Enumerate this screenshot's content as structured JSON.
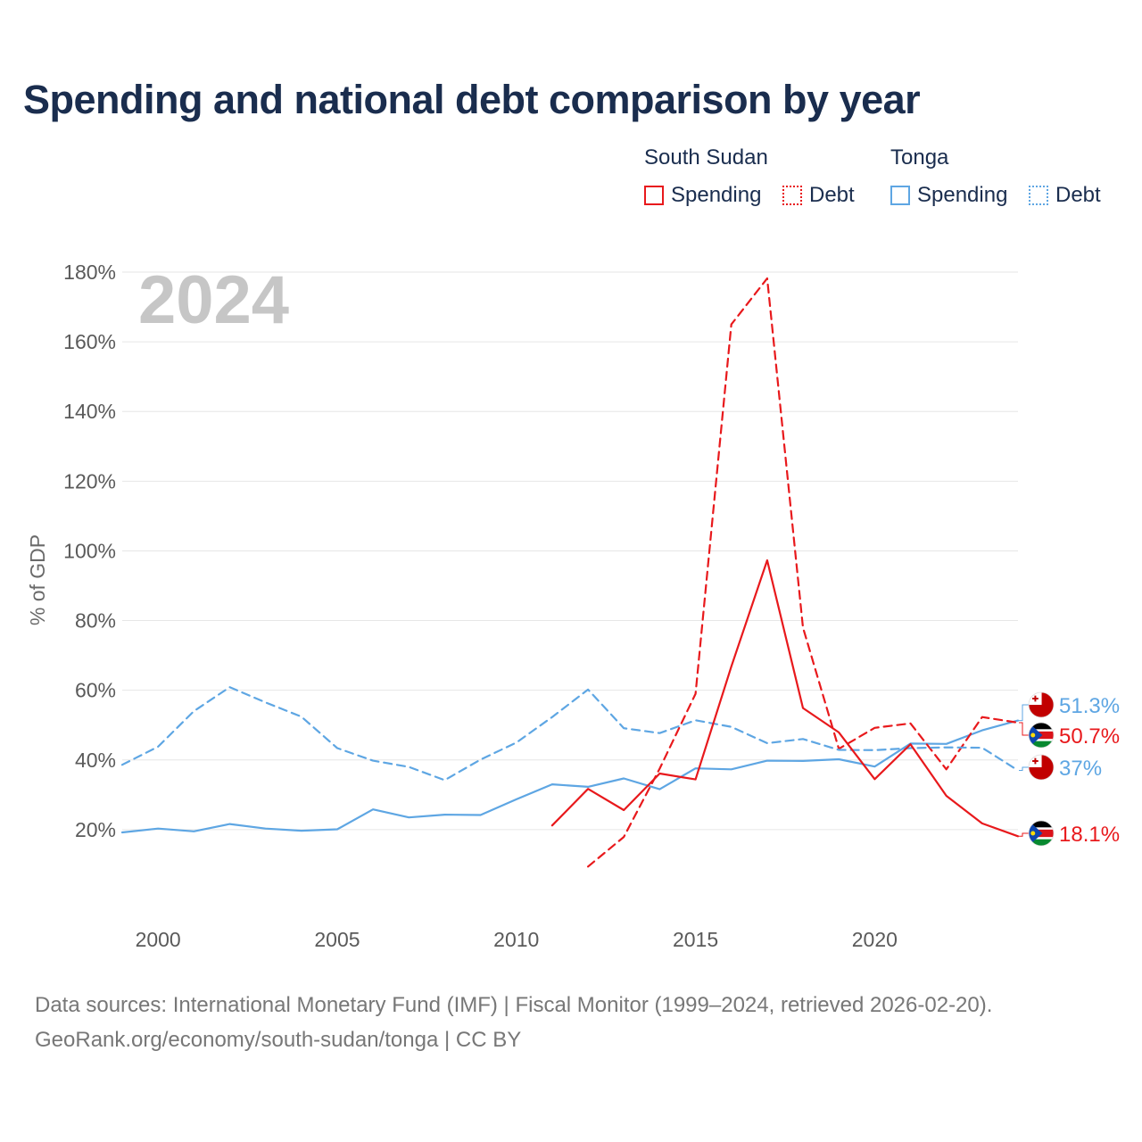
{
  "title": "Spending and national debt comparison by year",
  "legend": {
    "groups": [
      {
        "country": "South Sudan",
        "color": "#e8191c",
        "items": [
          {
            "label": "Spending",
            "style": "solid"
          },
          {
            "label": "Debt",
            "style": "dotted"
          }
        ]
      },
      {
        "country": "Tonga",
        "color": "#5ea6e3",
        "items": [
          {
            "label": "Spending",
            "style": "solid"
          },
          {
            "label": "Debt",
            "style": "dotted"
          }
        ]
      }
    ]
  },
  "source": {
    "line1": "Data sources: International Monetary Fund (IMF) | Fiscal Monitor (1999–2024, retrieved 2026-02-20).",
    "line2": "GeoRank.org/economy/south-sudan/tonga | CC BY"
  },
  "chart_data": {
    "type": "line",
    "title": "Spending and national debt comparison by year",
    "current_year_label": "2024",
    "ylabel": "% of GDP",
    "xlabel": "",
    "xlim": [
      1999,
      2024
    ],
    "ylim": [
      0,
      180
    ],
    "x_ticks": [
      2000,
      2005,
      2010,
      2015,
      2020
    ],
    "y_ticks": [
      20,
      40,
      60,
      80,
      100,
      120,
      140,
      160,
      180
    ],
    "y_tick_labels": [
      "20%",
      "40%",
      "60%",
      "80%",
      "100%",
      "120%",
      "140%",
      "160%",
      "180%"
    ],
    "colors": {
      "South Sudan": "#e8191c",
      "Tonga": "#5ea6e3"
    },
    "series": [
      {
        "name": "Tonga Spending",
        "country": "Tonga",
        "kind": "Spending",
        "dash": "solid",
        "x": [
          1999,
          2000,
          2001,
          2002,
          2003,
          2004,
          2005,
          2006,
          2007,
          2008,
          2009,
          2010,
          2011,
          2012,
          2013,
          2014,
          2015,
          2016,
          2017,
          2018,
          2019,
          2020,
          2021,
          2022,
          2023,
          2024
        ],
        "values": [
          19.2,
          20.3,
          19.5,
          21.6,
          20.3,
          19.7,
          20.1,
          25.8,
          23.5,
          24.3,
          24.2,
          28.7,
          33.0,
          32.3,
          34.7,
          31.6,
          37.6,
          37.3,
          39.8,
          39.7,
          40.2,
          38.1,
          44.7,
          44.6,
          48.5,
          51.3
        ],
        "end_label": "51.3%"
      },
      {
        "name": "South Sudan Debt",
        "country": "South Sudan",
        "kind": "Debt",
        "dash": "dashed",
        "x": [
          2012,
          2013,
          2014,
          2015,
          2016,
          2017,
          2018,
          2019,
          2020,
          2021,
          2022,
          2023,
          2024
        ],
        "values": [
          9.4,
          17.9,
          37.5,
          59.0,
          165.0,
          178.2,
          78.0,
          43.2,
          49.2,
          50.5,
          37.3,
          52.3,
          50.7
        ],
        "end_label": "50.7%"
      },
      {
        "name": "Tonga Debt",
        "country": "Tonga",
        "kind": "Debt",
        "dash": "dashed",
        "x": [
          1999,
          2000,
          2001,
          2002,
          2003,
          2004,
          2005,
          2006,
          2007,
          2008,
          2009,
          2010,
          2011,
          2012,
          2013,
          2014,
          2015,
          2016,
          2017,
          2018,
          2019,
          2020,
          2021,
          2022,
          2023,
          2024
        ],
        "values": [
          38.6,
          43.8,
          54.0,
          60.9,
          56.5,
          52.4,
          43.4,
          39.8,
          38.0,
          34.2,
          40.1,
          45.0,
          52.3,
          60.2,
          49.1,
          47.7,
          51.4,
          49.5,
          44.8,
          46.0,
          42.9,
          42.8,
          43.4,
          43.6,
          43.5,
          37.0
        ],
        "end_label": "37%"
      },
      {
        "name": "South Sudan Spending",
        "country": "South Sudan",
        "kind": "Spending",
        "dash": "solid",
        "x": [
          2011,
          2012,
          2013,
          2014,
          2015,
          2016,
          2017,
          2018,
          2019,
          2020,
          2021,
          2022,
          2023,
          2024
        ],
        "values": [
          21.2,
          31.7,
          25.6,
          36.1,
          34.4,
          66.8,
          97.3,
          54.9,
          47.9,
          34.5,
          44.5,
          29.7,
          21.8,
          18.1
        ],
        "end_label": "18.1%"
      }
    ],
    "end_labels_order": [
      "Tonga Spending",
      "South Sudan Debt",
      "Tonga Debt",
      "South Sudan Spending"
    ]
  }
}
